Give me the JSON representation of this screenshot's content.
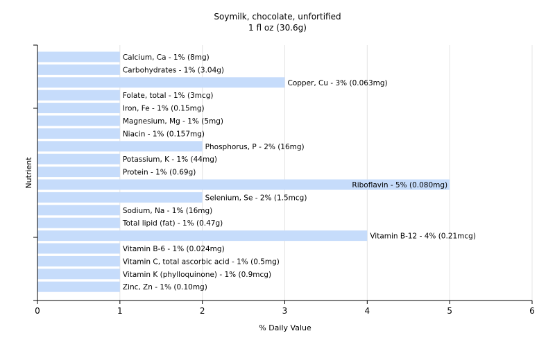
{
  "chart_data": {
    "type": "bar",
    "orientation": "horizontal",
    "title": "Soymilk, chocolate, unfortified",
    "subtitle": "1 fl oz (30.6g)",
    "xlabel": "% Daily Value",
    "ylabel": "Nutrient",
    "xlim": [
      0,
      6
    ],
    "xticks": [
      "0",
      "1",
      "2",
      "3",
      "4",
      "5",
      "6"
    ],
    "grid": true,
    "colors": {
      "bar": "#c6dcfb",
      "grid": "#e4e4e4",
      "axis": "#000000"
    },
    "categories": [
      "Calcium, Ca",
      "Carbohydrates",
      "Copper, Cu",
      "Folate, total",
      "Iron, Fe",
      "Magnesium, Mg",
      "Niacin",
      "Phosphorus, P",
      "Potassium, K",
      "Protein",
      "Riboflavin",
      "Selenium, Se",
      "Sodium, Na",
      "Total lipid (fat)",
      "Vitamin B-12",
      "Vitamin B-6",
      "Vitamin C, total ascorbic acid",
      "Vitamin K (phylloquinone)",
      "Zinc, Zn"
    ],
    "values": [
      1,
      1,
      3,
      1,
      1,
      1,
      1,
      2,
      1,
      1,
      5,
      2,
      1,
      1,
      4,
      1,
      1,
      1,
      1
    ],
    "labels": [
      "Calcium, Ca - 1% (8mg)",
      "Carbohydrates - 1% (3.04g)",
      "Copper, Cu - 3% (0.063mg)",
      "Folate, total - 1% (3mcg)",
      "Iron, Fe - 1% (0.15mg)",
      "Magnesium, Mg - 1% (5mg)",
      "Niacin - 1% (0.157mg)",
      "Phosphorus, P - 2% (16mg)",
      "Potassium, K - 1% (44mg)",
      "Protein - 1% (0.69g)",
      "Riboflavin - 5% (0.080mg)",
      "Selenium, Se - 2% (1.5mcg)",
      "Sodium, Na - 1% (16mg)",
      "Total lipid (fat) - 1% (0.47g)",
      "Vitamin B-12 - 4% (0.21mcg)",
      "Vitamin B-6 - 1% (0.024mg)",
      "Vitamin C, total ascorbic acid - 1% (0.5mg)",
      "Vitamin K (phylloquinone) - 1% (0.9mcg)",
      "Zinc, Zn - 1% (0.10mg)"
    ]
  }
}
